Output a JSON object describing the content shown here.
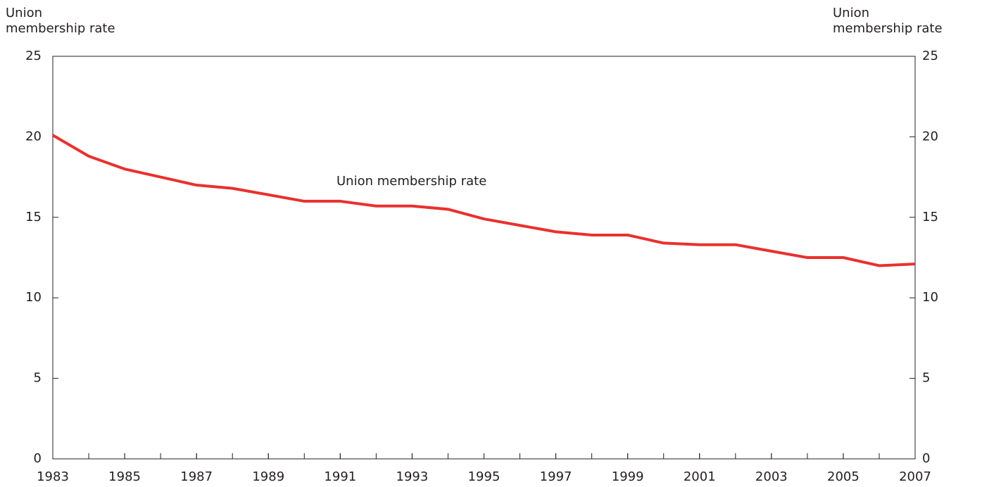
{
  "chart_data": {
    "type": "line",
    "y_label": "Union membership rate",
    "y2_label": "Union membership rate",
    "x": [
      1983,
      1984,
      1985,
      1986,
      1987,
      1988,
      1989,
      1990,
      1991,
      1992,
      1993,
      1994,
      1995,
      1996,
      1997,
      1998,
      1999,
      2000,
      2001,
      2002,
      2003,
      2004,
      2005,
      2006,
      2007
    ],
    "series": [
      {
        "name": "Union membership rate",
        "color": "#e8312f",
        "values": [
          20.1,
          18.8,
          18.0,
          17.5,
          17.0,
          16.8,
          16.4,
          16.0,
          16.0,
          15.7,
          15.7,
          15.5,
          14.9,
          14.5,
          14.1,
          13.9,
          13.9,
          13.4,
          13.3,
          13.3,
          12.9,
          12.5,
          12.5,
          12.0,
          12.1
        ]
      }
    ],
    "xlim": [
      1983,
      2007
    ],
    "xticks": [
      1983,
      1985,
      1987,
      1989,
      1991,
      1993,
      1995,
      1997,
      1999,
      2001,
      2003,
      2005,
      2007
    ],
    "ylim": [
      0,
      25
    ],
    "yticks": [
      0,
      5,
      10,
      15,
      20,
      25
    ],
    "y2lim": [
      0,
      25
    ],
    "y2ticks": [
      0,
      5,
      10,
      15,
      20,
      25
    ]
  }
}
